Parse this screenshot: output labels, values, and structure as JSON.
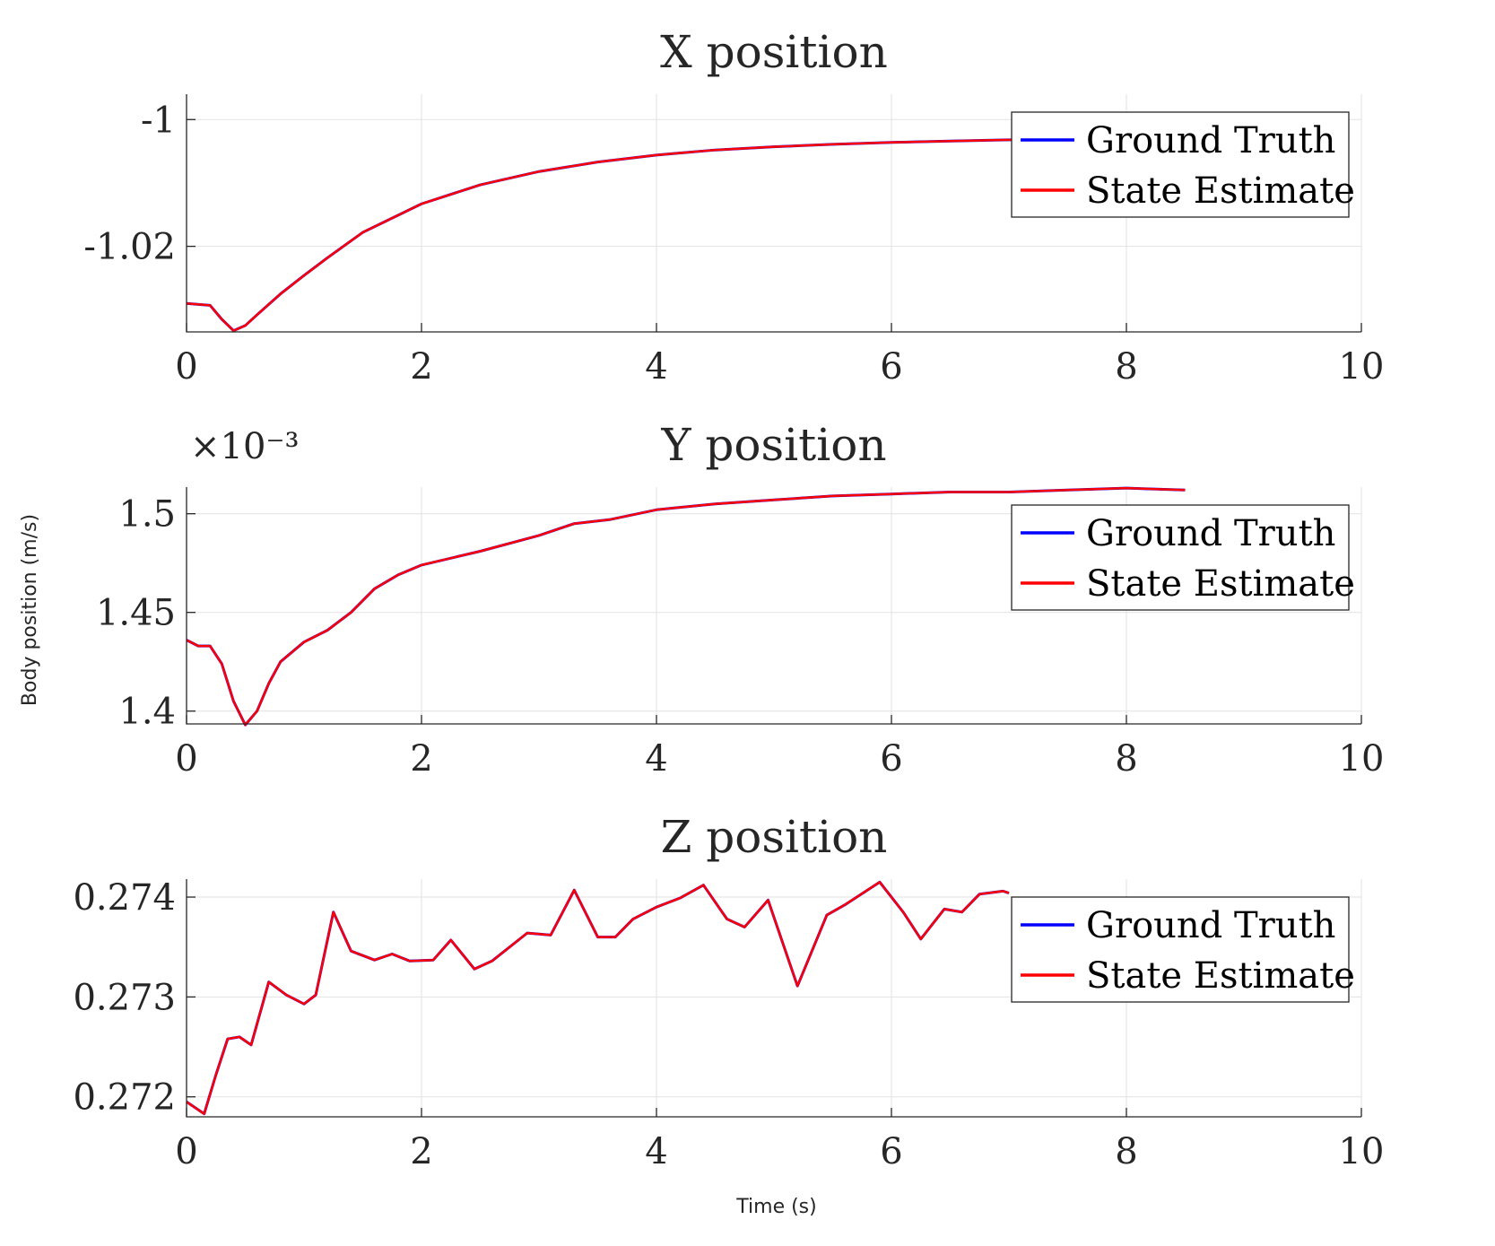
{
  "figure": {
    "ylabel": "Body position (m/s)",
    "xlabel": "Time (s)"
  },
  "colors": {
    "ground_truth": "#0000ff",
    "state_estimate": "#ff0000",
    "axes": "#262626",
    "grid": "#e2e2e2"
  },
  "chart_data": [
    {
      "type": "line",
      "title": "X position",
      "xlabel": "",
      "ylabel": "",
      "xlim": [
        0,
        10
      ],
      "ylim": [
        -1.0335,
        -0.996
      ],
      "xticks": [
        0,
        2,
        4,
        6,
        8,
        10
      ],
      "xtick_labels": [
        "0",
        "2",
        "4",
        "6",
        "8",
        "10"
      ],
      "yticks": [
        -1,
        -1.02
      ],
      "ytick_labels": [
        "-1",
        "-1.02"
      ],
      "exponent_label": "",
      "grid": true,
      "legend": "top-right",
      "legend_entries": [
        "Ground Truth",
        "State Estimate"
      ],
      "series": [
        {
          "name": "Ground Truth",
          "color": "#0000ff",
          "x": [
            0,
            0.2,
            0.3,
            0.4,
            0.5,
            0.6,
            0.8,
            1.0,
            1.2,
            1.5,
            2.0,
            2.5,
            3.0,
            3.5,
            4.0,
            4.5,
            5.0,
            5.5,
            6.0,
            6.5,
            7.0,
            7.5,
            8.0,
            8.5
          ],
          "y": [
            -1.029,
            -1.0293,
            -1.0315,
            -1.0333,
            -1.0325,
            -1.0308,
            -1.0275,
            -1.0246,
            -1.0218,
            -1.0178,
            -1.0133,
            -1.0103,
            -1.0082,
            -1.0067,
            -1.0056,
            -1.0048,
            -1.0043,
            -1.0039,
            -1.0036,
            -1.0034,
            -1.0032,
            -1.003,
            -1.0028,
            -1.0026
          ]
        },
        {
          "name": "State Estimate",
          "color": "#ff0000",
          "x": [
            0,
            0.2,
            0.3,
            0.4,
            0.5,
            0.6,
            0.8,
            1.0,
            1.2,
            1.5,
            2.0,
            2.5,
            3.0,
            3.5,
            4.0,
            4.5,
            5.0,
            5.5,
            6.0,
            6.5,
            7.0,
            7.5,
            8.0,
            8.5
          ],
          "y": [
            -1.029,
            -1.0293,
            -1.0315,
            -1.0333,
            -1.0325,
            -1.0308,
            -1.0275,
            -1.0246,
            -1.0218,
            -1.0178,
            -1.0133,
            -1.0103,
            -1.0082,
            -1.0067,
            -1.0056,
            -1.0048,
            -1.0043,
            -1.0039,
            -1.0036,
            -1.0034,
            -1.0032,
            -1.003,
            -1.0028,
            -1.0026
          ]
        }
      ]
    },
    {
      "type": "line",
      "title": "Y position",
      "xlabel": "",
      "ylabel": "",
      "xlim": [
        0,
        10
      ],
      "ylim": [
        1.3935,
        1.5135
      ],
      "xticks": [
        0,
        2,
        4,
        6,
        8,
        10
      ],
      "xtick_labels": [
        "0",
        "2",
        "4",
        "6",
        "8",
        "10"
      ],
      "yticks": [
        1.4,
        1.45,
        1.5
      ],
      "ytick_labels": [
        "1.4",
        "1.45",
        "1.5"
      ],
      "exponent_label": "×10⁻³",
      "grid": true,
      "legend": "top-right",
      "legend_entries": [
        "Ground Truth",
        "State Estimate"
      ],
      "series": [
        {
          "name": "Ground Truth",
          "color": "#0000ff",
          "x": [
            0,
            0.1,
            0.2,
            0.3,
            0.4,
            0.5,
            0.6,
            0.7,
            0.8,
            1.0,
            1.2,
            1.4,
            1.6,
            1.8,
            2.0,
            2.5,
            3.0,
            3.3,
            3.6,
            4.0,
            4.5,
            5.0,
            5.5,
            6.0,
            6.5,
            7.0,
            7.5,
            8.0,
            8.5
          ],
          "y": [
            1.436,
            1.433,
            1.433,
            1.424,
            1.405,
            1.393,
            1.4,
            1.414,
            1.425,
            1.435,
            1.441,
            1.45,
            1.462,
            1.469,
            1.474,
            1.481,
            1.489,
            1.495,
            1.497,
            1.502,
            1.505,
            1.507,
            1.509,
            1.51,
            1.511,
            1.511,
            1.512,
            1.513,
            1.512
          ]
        },
        {
          "name": "State Estimate",
          "color": "#ff0000",
          "x": [
            0,
            0.1,
            0.2,
            0.3,
            0.4,
            0.5,
            0.6,
            0.7,
            0.8,
            1.0,
            1.2,
            1.4,
            1.6,
            1.8,
            2.0,
            2.5,
            3.0,
            3.3,
            3.6,
            4.0,
            4.5,
            5.0,
            5.5,
            6.0,
            6.5,
            7.0,
            7.5,
            8.0,
            8.5
          ],
          "y": [
            1.436,
            1.433,
            1.433,
            1.424,
            1.405,
            1.393,
            1.4,
            1.414,
            1.425,
            1.435,
            1.441,
            1.45,
            1.462,
            1.469,
            1.474,
            1.481,
            1.489,
            1.495,
            1.497,
            1.502,
            1.505,
            1.507,
            1.509,
            1.51,
            1.511,
            1.511,
            1.512,
            1.513,
            1.512
          ]
        }
      ]
    },
    {
      "type": "line",
      "title": "Z position",
      "xlabel": "Time (s)",
      "ylabel": "",
      "xlim": [
        0,
        10
      ],
      "ylim": [
        0.2718,
        0.27418
      ],
      "xticks": [
        0,
        2,
        4,
        6,
        8,
        10
      ],
      "xtick_labels": [
        "0",
        "2",
        "4",
        "6",
        "8",
        "10"
      ],
      "yticks": [
        0.272,
        0.273,
        0.274
      ],
      "ytick_labels": [
        "0.272",
        "0.273",
        "0.274"
      ],
      "exponent_label": "",
      "grid": true,
      "legend": "top-right",
      "legend_entries": [
        "Ground Truth",
        "State Estimate"
      ],
      "series": [
        {
          "name": "Ground Truth",
          "color": "#0000ff",
          "x": [
            0,
            0.15,
            0.25,
            0.35,
            0.45,
            0.55,
            0.7,
            0.85,
            1.0,
            1.1,
            1.25,
            1.4,
            1.6,
            1.75,
            1.9,
            2.1,
            2.25,
            2.45,
            2.6,
            2.9,
            3.1,
            3.3,
            3.5,
            3.65,
            3.8,
            4.0,
            4.2,
            4.4,
            4.6,
            4.75,
            4.95,
            5.2,
            5.45,
            5.6,
            5.9,
            6.1,
            6.25,
            6.45,
            6.6,
            6.75,
            6.95,
            7.0
          ],
          "y": [
            0.27195,
            0.27183,
            0.27222,
            0.27258,
            0.2726,
            0.27252,
            0.27315,
            0.27302,
            0.27293,
            0.27302,
            0.27385,
            0.27346,
            0.27337,
            0.27343,
            0.27336,
            0.27337,
            0.27357,
            0.27328,
            0.27336,
            0.27364,
            0.27362,
            0.27407,
            0.2736,
            0.2736,
            0.27378,
            0.2739,
            0.27399,
            0.27412,
            0.27378,
            0.2737,
            0.27397,
            0.27311,
            0.27382,
            0.27392,
            0.27415,
            0.27385,
            0.27358,
            0.27388,
            0.27385,
            0.27403,
            0.27406,
            0.27404
          ]
        },
        {
          "name": "State Estimate",
          "color": "#ff0000",
          "x": [
            0,
            0.15,
            0.25,
            0.35,
            0.45,
            0.55,
            0.7,
            0.85,
            1.0,
            1.1,
            1.25,
            1.4,
            1.6,
            1.75,
            1.9,
            2.1,
            2.25,
            2.45,
            2.6,
            2.9,
            3.1,
            3.3,
            3.5,
            3.65,
            3.8,
            4.0,
            4.2,
            4.4,
            4.6,
            4.75,
            4.95,
            5.2,
            5.45,
            5.6,
            5.9,
            6.1,
            6.25,
            6.45,
            6.6,
            6.75,
            6.95,
            7.0
          ],
          "y": [
            0.27195,
            0.27183,
            0.27222,
            0.27258,
            0.2726,
            0.27252,
            0.27315,
            0.27302,
            0.27293,
            0.27302,
            0.27385,
            0.27346,
            0.27337,
            0.27343,
            0.27336,
            0.27337,
            0.27357,
            0.27328,
            0.27336,
            0.27364,
            0.27362,
            0.27407,
            0.2736,
            0.2736,
            0.27378,
            0.2739,
            0.27399,
            0.27412,
            0.27378,
            0.2737,
            0.27397,
            0.27311,
            0.27382,
            0.27392,
            0.27415,
            0.27385,
            0.27358,
            0.27388,
            0.27385,
            0.27403,
            0.27406,
            0.27404
          ]
        }
      ]
    }
  ]
}
